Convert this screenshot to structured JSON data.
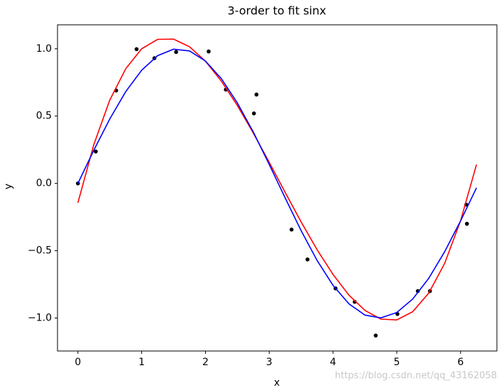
{
  "chart_data": {
    "type": "line",
    "title": "3-order to fit sinx",
    "xlabel": "x",
    "ylabel": "y",
    "watermark": "https://blog.csdn.net/qq_43162058",
    "xlim": [
      -0.32,
      6.57
    ],
    "ylim": [
      -1.245,
      1.178
    ],
    "xticks": [
      0,
      1,
      2,
      3,
      4,
      5,
      6
    ],
    "yticks": [
      {
        "value": 1,
        "label": "1.0"
      },
      {
        "value": 0.5,
        "label": "0.5"
      },
      {
        "value": 0,
        "label": "0.0"
      },
      {
        "value": -0.5,
        "label": "−0.5"
      },
      {
        "value": -1,
        "label": "−1.0"
      }
    ],
    "series": [
      {
        "type": "scatter",
        "color": "black",
        "x": [
          0,
          0.28,
          0.6,
          0.92,
          1.2,
          1.54,
          2.05,
          2.32,
          2.76,
          2.8,
          3.35,
          3.6,
          4.04,
          4.34,
          4.67,
          5.01,
          5.33,
          5.52,
          6.09,
          6.1
        ],
        "values": [
          0,
          0.237,
          0.69,
          0.997,
          0.93,
          0.976,
          0.98,
          0.697,
          0.52,
          0.66,
          -0.343,
          -0.565,
          -0.78,
          -0.88,
          -1.13,
          -0.97,
          -0.8,
          -0.8,
          -0.158,
          -0.3
        ]
      },
      {
        "type": "line",
        "color": "red",
        "x": [
          0,
          0.25,
          0.5,
          0.75,
          1,
          1.25,
          1.5,
          1.75,
          2,
          2.25,
          2.5,
          2.75,
          3,
          3.25,
          3.5,
          3.75,
          4,
          4.25,
          4.5,
          4.75,
          5,
          5.25,
          5.5,
          5.75,
          6,
          6.25
        ],
        "values": [
          -0.144,
          0.289,
          0.619,
          0.852,
          1.0,
          1.07,
          1.072,
          1.015,
          0.908,
          0.759,
          0.579,
          0.374,
          0.157,
          -0.067,
          -0.286,
          -0.492,
          -0.676,
          -0.83,
          -0.943,
          -1.008,
          -1.014,
          -0.953,
          -0.816,
          -0.595,
          -0.278,
          0.14
        ]
      },
      {
        "type": "line",
        "color": "blue",
        "x": [
          0,
          0.25,
          0.5,
          0.75,
          1,
          1.25,
          1.5,
          1.75,
          2,
          2.25,
          2.5,
          2.75,
          3,
          3.25,
          3.5,
          3.75,
          4,
          4.25,
          4.5,
          4.75,
          5,
          5.25,
          5.5,
          5.75,
          6,
          6.25
        ],
        "values": [
          0,
          0.247,
          0.479,
          0.682,
          0.841,
          0.949,
          0.997,
          0.984,
          0.909,
          0.778,
          0.598,
          0.382,
          0.141,
          -0.108,
          -0.351,
          -0.572,
          -0.757,
          -0.895,
          -0.978,
          -0.999,
          -0.959,
          -0.859,
          -0.706,
          -0.508,
          -0.279,
          -0.033
        ]
      }
    ]
  }
}
